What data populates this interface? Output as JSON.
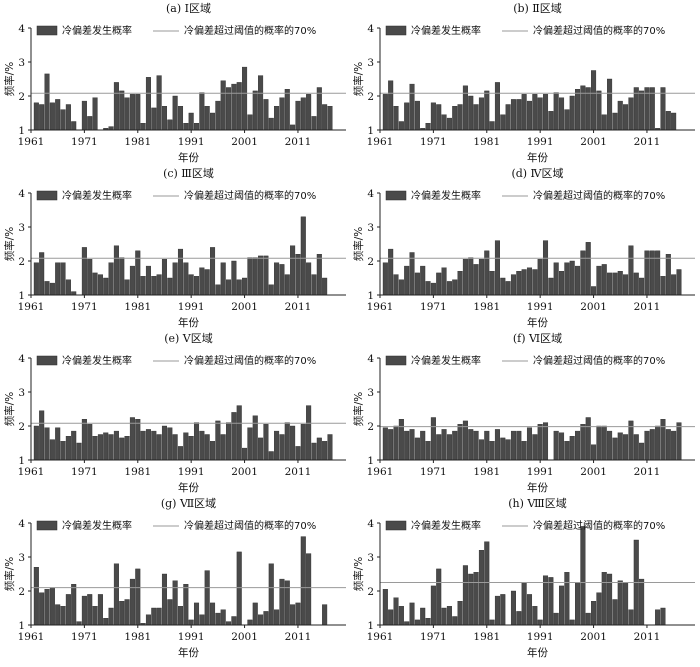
{
  "colors": {
    "bar": "#4a4a4a",
    "bar_stroke": "#2a2a2a",
    "threshold": "#9a9a9a",
    "axis": "#222222"
  },
  "chart_data": [
    {
      "type": "bar",
      "title": "(a) Ⅰ区域",
      "xlabel": "年份",
      "ylabel": "频率/%",
      "legend": [
        "冷偏差发生概率",
        "冷偏差超过阈值的概率的70%"
      ],
      "x_start": 1962,
      "x_ticks": [
        1961,
        1971,
        1981,
        1991,
        2001,
        2011
      ],
      "ylim": [
        1,
        4
      ],
      "y_ticks": [
        1,
        2,
        3,
        4
      ],
      "threshold": 2.08,
      "values": [
        1.8,
        1.75,
        2.65,
        1.8,
        1.9,
        1.6,
        1.75,
        1.25,
        1.0,
        1.85,
        1.4,
        1.95,
        1.0,
        1.05,
        1.1,
        2.4,
        2.15,
        1.95,
        2.05,
        2.05,
        1.2,
        2.55,
        1.65,
        2.6,
        1.7,
        1.3,
        2.0,
        1.7,
        1.2,
        1.5,
        1.2,
        2.1,
        1.7,
        1.5,
        1.85,
        2.45,
        2.25,
        2.35,
        2.4,
        2.85,
        1.45,
        2.15,
        2.6,
        1.9,
        1.35,
        1.7,
        1.95,
        2.2,
        1.15,
        1.85,
        1.95,
        2.05,
        1.4,
        2.25,
        1.75,
        1.7
      ]
    },
    {
      "type": "bar",
      "title": "(b) Ⅱ区域",
      "xlabel": "年份",
      "ylabel": "频率/%",
      "legend": [
        "冷偏差发生概率",
        "冷偏差超过阈值的概率的70%"
      ],
      "x_start": 1962,
      "x_ticks": [
        1961,
        1971,
        1981,
        1991,
        2001,
        2011
      ],
      "ylim": [
        1,
        4
      ],
      "y_ticks": [
        1,
        2,
        3,
        4
      ],
      "threshold": 2.08,
      "values": [
        2.05,
        2.45,
        1.7,
        1.25,
        1.8,
        2.35,
        1.85,
        1.05,
        1.2,
        1.8,
        1.75,
        1.45,
        1.35,
        1.7,
        1.75,
        2.3,
        2.0,
        1.75,
        1.95,
        2.15,
        1.25,
        2.4,
        1.45,
        1.75,
        1.9,
        1.9,
        2.05,
        1.85,
        2.05,
        1.95,
        2.05,
        1.55,
        2.1,
        1.95,
        1.6,
        2.0,
        2.2,
        2.3,
        2.25,
        2.75,
        2.15,
        1.45,
        2.5,
        1.5,
        1.85,
        1.75,
        1.95,
        2.25,
        2.15,
        2.25,
        2.25,
        1.05,
        2.25,
        1.55,
        1.5,
        1.0
      ]
    },
    {
      "type": "bar",
      "title": "(c) Ⅲ区域",
      "xlabel": "年份",
      "ylabel": "频率/%",
      "legend": [
        "冷偏差发生概率",
        "冷偏差超过阈值的概率的70%"
      ],
      "x_start": 1962,
      "x_ticks": [
        1961,
        1971,
        1981,
        1991,
        2001,
        2011
      ],
      "ylim": [
        1,
        4
      ],
      "y_ticks": [
        1,
        2,
        3,
        4
      ],
      "threshold": 2.08,
      "values": [
        1.95,
        2.25,
        1.4,
        1.35,
        1.95,
        1.95,
        1.45,
        1.1,
        1.0,
        2.4,
        2.05,
        1.65,
        1.6,
        1.5,
        1.95,
        2.45,
        2.1,
        1.45,
        1.85,
        2.3,
        1.55,
        1.85,
        1.55,
        1.6,
        2.05,
        1.5,
        1.95,
        2.35,
        1.95,
        1.6,
        1.55,
        1.8,
        1.75,
        2.4,
        1.3,
        1.95,
        1.45,
        2.0,
        1.45,
        1.5,
        2.1,
        2.1,
        2.15,
        2.15,
        1.3,
        1.95,
        1.9,
        1.6,
        2.45,
        2.2,
        3.3,
        1.95,
        1.6,
        2.2,
        1.5,
        1.0
      ]
    },
    {
      "type": "bar",
      "title": "(d) Ⅳ区域",
      "xlabel": "年份",
      "ylabel": "频率/%",
      "legend": [
        "冷偏差发生概率",
        "冷偏差超过阈值的概率的70%"
      ],
      "x_start": 1962,
      "x_ticks": [
        1961,
        1971,
        1981,
        1991,
        2001,
        2011
      ],
      "ylim": [
        1,
        4
      ],
      "y_ticks": [
        1,
        2,
        3,
        4
      ],
      "threshold": 2.08,
      "values": [
        1.95,
        2.35,
        1.6,
        1.45,
        1.85,
        2.25,
        1.65,
        1.85,
        1.4,
        1.35,
        1.65,
        1.8,
        1.4,
        1.45,
        1.7,
        2.05,
        2.1,
        1.9,
        2.05,
        2.3,
        1.7,
        2.6,
        1.5,
        1.4,
        1.6,
        1.7,
        1.75,
        1.8,
        1.75,
        2.05,
        2.6,
        1.5,
        1.95,
        1.7,
        1.95,
        2.0,
        1.85,
        2.3,
        2.55,
        1.25,
        1.85,
        1.9,
        1.65,
        1.65,
        1.7,
        1.6,
        2.45,
        1.65,
        1.5,
        2.3,
        2.3,
        2.3,
        1.55,
        2.2,
        1.6,
        1.75
      ]
    },
    {
      "type": "bar",
      "title": "(e) Ⅴ区域",
      "xlabel": "年份",
      "ylabel": "频率/%",
      "legend": [
        "冷偏差发生概率",
        "冷偏差超过阈值的概率的70%"
      ],
      "x_start": 1962,
      "x_ticks": [
        1961,
        1971,
        1981,
        1991,
        2001,
        2011
      ],
      "ylim": [
        1,
        4
      ],
      "y_ticks": [
        1,
        2,
        3,
        4
      ],
      "threshold": 2.08,
      "values": [
        2.0,
        2.45,
        1.95,
        1.6,
        1.95,
        1.55,
        1.7,
        1.85,
        1.5,
        2.2,
        2.05,
        1.7,
        1.75,
        1.8,
        1.75,
        1.85,
        1.65,
        1.7,
        2.25,
        2.2,
        1.85,
        1.9,
        1.85,
        1.75,
        2.0,
        1.95,
        1.75,
        1.4,
        1.8,
        1.7,
        2.1,
        1.85,
        1.75,
        1.55,
        2.15,
        1.75,
        2.1,
        2.4,
        2.6,
        1.35,
        1.95,
        2.3,
        1.65,
        2.05,
        1.25,
        1.85,
        1.75,
        2.1,
        2.0,
        1.4,
        2.05,
        2.6,
        1.5,
        1.65,
        1.55,
        1.75
      ]
    },
    {
      "type": "bar",
      "title": "(f) Ⅵ区域",
      "xlabel": "年份",
      "ylabel": "频率/%",
      "legend": [
        "冷偏差发生概率",
        "冷偏差超过阈值的概率的70%"
      ],
      "x_start": 1962,
      "x_ticks": [
        1961,
        1971,
        1981,
        1991,
        2001,
        2011
      ],
      "ylim": [
        1,
        4
      ],
      "y_ticks": [
        1,
        2,
        3,
        4
      ],
      "threshold": 1.98,
      "values": [
        1.95,
        1.9,
        2.0,
        2.2,
        1.85,
        1.9,
        1.65,
        1.85,
        1.55,
        2.25,
        1.75,
        1.9,
        1.75,
        1.85,
        2.05,
        2.15,
        1.9,
        1.85,
        1.6,
        1.85,
        1.55,
        1.9,
        1.65,
        1.6,
        1.85,
        1.85,
        1.55,
        1.95,
        1.75,
        2.05,
        2.1,
        1.0,
        1.85,
        1.8,
        1.55,
        1.7,
        1.85,
        2.05,
        2.25,
        1.45,
        2.0,
        2.0,
        1.85,
        1.65,
        1.8,
        1.75,
        2.15,
        1.75,
        1.5,
        1.85,
        1.9,
        2.0,
        2.2,
        1.9,
        1.85,
        2.1
      ]
    },
    {
      "type": "bar",
      "title": "(g) Ⅶ区域",
      "xlabel": "年份",
      "ylabel": "频率/%",
      "legend": [
        "冷偏差发生概率",
        "冷偏差超过阈值的概率的70%"
      ],
      "x_start": 1962,
      "x_ticks": [
        1961,
        1971,
        1981,
        1991,
        2001,
        2011
      ],
      "ylim": [
        1,
        4
      ],
      "y_ticks": [
        1,
        2,
        3,
        4
      ],
      "threshold": 2.1,
      "values": [
        2.7,
        1.95,
        2.05,
        2.1,
        1.6,
        1.55,
        1.9,
        2.2,
        1.1,
        1.85,
        1.9,
        1.55,
        1.9,
        1.2,
        1.5,
        2.8,
        1.7,
        1.75,
        2.35,
        2.65,
        1.05,
        1.3,
        1.5,
        1.5,
        2.5,
        1.75,
        2.3,
        1.55,
        2.2,
        1.15,
        1.65,
        1.3,
        2.6,
        1.65,
        1.35,
        1.45,
        1.1,
        1.25,
        3.15,
        1.0,
        1.15,
        1.65,
        1.3,
        1.4,
        2.8,
        1.45,
        2.35,
        2.3,
        1.6,
        1.65,
        3.6,
        3.1,
        1.0,
        1.0,
        1.6,
        1.0
      ]
    },
    {
      "type": "bar",
      "title": "(h) Ⅷ区域",
      "xlabel": "年份",
      "ylabel": "频率/%",
      "legend": [
        "冷偏差发生概率",
        "冷偏差超过阈值的概率的70%"
      ],
      "x_start": 1962,
      "x_ticks": [
        1961,
        1971,
        1981,
        1991,
        2001,
        2011
      ],
      "ylim": [
        1,
        4
      ],
      "y_ticks": [
        1,
        2,
        3,
        4
      ],
      "threshold": 2.25,
      "values": [
        2.05,
        1.45,
        1.8,
        1.55,
        1.1,
        1.65,
        1.15,
        1.5,
        1.2,
        2.15,
        2.65,
        1.5,
        1.55,
        1.25,
        1.7,
        2.75,
        2.5,
        2.55,
        3.2,
        3.45,
        1.15,
        1.85,
        1.9,
        1.0,
        2.0,
        1.4,
        2.25,
        1.9,
        1.55,
        1.15,
        2.45,
        2.4,
        1.35,
        2.15,
        2.55,
        1.15,
        2.25,
        3.9,
        1.35,
        1.7,
        1.95,
        2.55,
        2.5,
        1.75,
        2.3,
        2.25,
        1.45,
        3.5,
        2.35,
        1.0,
        1.0,
        1.45,
        1.5,
        1.0,
        1.0,
        1.0
      ]
    }
  ]
}
